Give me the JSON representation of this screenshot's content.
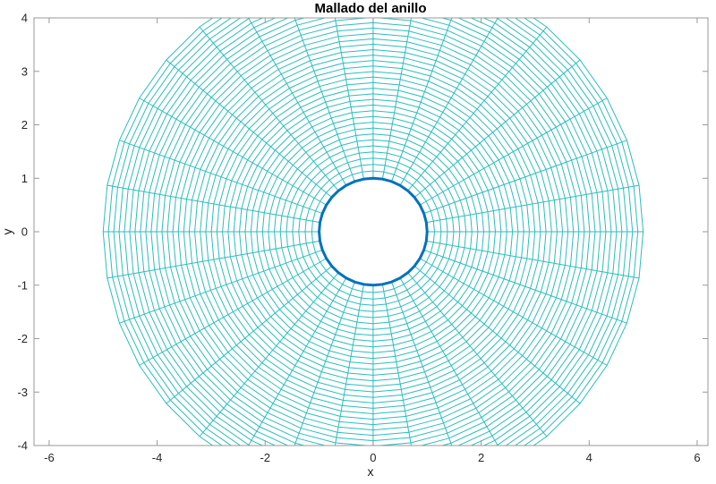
{
  "figure": {
    "title": "Mallado del anillo",
    "xlabel": "x",
    "ylabel": "y"
  },
  "chart_data": {
    "type": "line",
    "subtype": "polar_mesh",
    "title": "Mallado del anillo",
    "xlabel": "x",
    "ylabel": "y",
    "xlim": [
      -6.28,
      6.2
    ],
    "ylim": [
      -4,
      4
    ],
    "xticks": [
      -6,
      -4,
      -2,
      0,
      2,
      4,
      6
    ],
    "yticks": [
      -4,
      -3,
      -2,
      -1,
      0,
      1,
      2,
      3,
      4
    ],
    "grid": false,
    "legend": null,
    "mesh": {
      "center": [
        0,
        0
      ],
      "inner_radius": 1,
      "outer_radius": 5,
      "angular_divisions": 36,
      "angular_step_deg": 10,
      "radial_divisions": 38,
      "radial_power": 0.93
    },
    "inner_boundary": {
      "radius": 1,
      "color": "#0072BD",
      "line_width": 3
    },
    "colors": {
      "mesh_line": "#2CBDBD",
      "axis_box": "#999999",
      "tick": "#999999",
      "tick_label": "#262626",
      "title": "#000000",
      "axis_label": "#1a1a1a",
      "background": "#ffffff"
    }
  }
}
